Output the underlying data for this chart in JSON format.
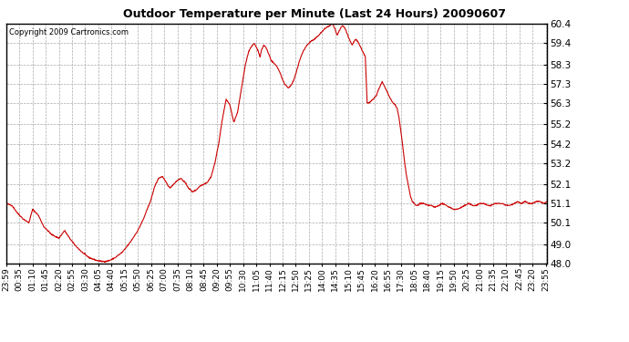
{
  "title": "Outdoor Temperature per Minute (Last 24 Hours) 20090607",
  "copyright": "Copyright 2009 Cartronics.com",
  "line_color": "#cc0000",
  "line_width": 0.8,
  "bg_color": "#ffffff",
  "plot_bg_color": "#ffffff",
  "grid_color": "#aaaaaa",
  "grid_style": "--",
  "ylim": [
    48.0,
    60.4
  ],
  "yticks": [
    48.0,
    49.0,
    50.1,
    51.1,
    52.1,
    53.2,
    54.2,
    55.2,
    56.3,
    57.3,
    58.3,
    59.4,
    60.4
  ],
  "xtick_labels": [
    "23:59",
    "00:35",
    "01:10",
    "01:45",
    "02:20",
    "02:55",
    "03:30",
    "04:05",
    "04:40",
    "05:15",
    "05:50",
    "06:25",
    "07:00",
    "07:35",
    "08:10",
    "08:45",
    "09:20",
    "09:55",
    "10:30",
    "11:05",
    "11:40",
    "12:15",
    "12:50",
    "13:25",
    "14:00",
    "14:35",
    "15:10",
    "15:45",
    "16:20",
    "16:55",
    "17:30",
    "18:05",
    "18:40",
    "19:15",
    "19:50",
    "20:25",
    "21:00",
    "21:35",
    "22:10",
    "22:45",
    "23:20",
    "23:55"
  ],
  "n_points": 1440
}
